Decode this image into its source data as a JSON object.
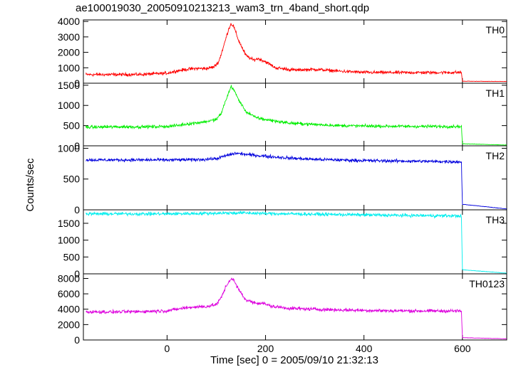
{
  "chart_data": {
    "type": "line",
    "title": "ae100019030_20050910213213_wam3_trn_4band_short.qdp",
    "xlabel": "Time [sec] 0 = 2005/09/10 21:32:13",
    "ylabel": "Counts/sec",
    "xlim": [
      -170,
      690
    ],
    "x_ticks": [
      0,
      200,
      400,
      600
    ],
    "grid": false,
    "panels": [
      {
        "name": "TH0",
        "color": "#ff0000",
        "ylim": [
          0,
          4100
        ],
        "y_ticks": [
          0,
          1000,
          2000,
          3000,
          4000
        ],
        "points": [
          [
            -165,
            560
          ],
          [
            -100,
            560
          ],
          [
            -50,
            570
          ],
          [
            0,
            650
          ],
          [
            20,
            800
          ],
          [
            40,
            900
          ],
          [
            60,
            960
          ],
          [
            80,
            950
          ],
          [
            95,
            1050
          ],
          [
            105,
            1400
          ],
          [
            115,
            2400
          ],
          [
            125,
            3500
          ],
          [
            130,
            3850
          ],
          [
            135,
            3700
          ],
          [
            145,
            2800
          ],
          [
            160,
            1800
          ],
          [
            175,
            1500
          ],
          [
            185,
            1600
          ],
          [
            200,
            1400
          ],
          [
            220,
            1000
          ],
          [
            260,
            850
          ],
          [
            300,
            900
          ],
          [
            350,
            780
          ],
          [
            400,
            700
          ],
          [
            450,
            690
          ],
          [
            500,
            690
          ],
          [
            550,
            690
          ],
          [
            595,
            700
          ],
          [
            598,
            700
          ],
          [
            600,
            130
          ],
          [
            690,
            110
          ]
        ]
      },
      {
        "name": "TH1",
        "color": "#00ee00",
        "ylim": [
          0,
          1550
        ],
        "y_ticks": [
          0,
          500,
          1000,
          1500
        ],
        "points": [
          [
            -165,
            460
          ],
          [
            -100,
            470
          ],
          [
            -50,
            470
          ],
          [
            0,
            480
          ],
          [
            20,
            500
          ],
          [
            40,
            540
          ],
          [
            60,
            570
          ],
          [
            80,
            600
          ],
          [
            100,
            650
          ],
          [
            110,
            800
          ],
          [
            120,
            1150
          ],
          [
            130,
            1470
          ],
          [
            135,
            1400
          ],
          [
            145,
            1150
          ],
          [
            160,
            850
          ],
          [
            180,
            700
          ],
          [
            200,
            650
          ],
          [
            250,
            560
          ],
          [
            300,
            530
          ],
          [
            350,
            500
          ],
          [
            400,
            490
          ],
          [
            450,
            485
          ],
          [
            500,
            480
          ],
          [
            550,
            480
          ],
          [
            595,
            480
          ],
          [
            598,
            475
          ],
          [
            600,
            50
          ],
          [
            690,
            20
          ]
        ]
      },
      {
        "name": "TH2",
        "color": "#0000dd",
        "ylim": [
          0,
          1040
        ],
        "y_ticks": [
          0,
          500,
          1000
        ],
        "points": [
          [
            -165,
            810
          ],
          [
            -100,
            810
          ],
          [
            -50,
            810
          ],
          [
            0,
            810
          ],
          [
            60,
            815
          ],
          [
            100,
            830
          ],
          [
            120,
            880
          ],
          [
            140,
            920
          ],
          [
            160,
            900
          ],
          [
            200,
            870
          ],
          [
            250,
            840
          ],
          [
            300,
            820
          ],
          [
            400,
            800
          ],
          [
            500,
            790
          ],
          [
            595,
            780
          ],
          [
            598,
            770
          ],
          [
            600,
            90
          ],
          [
            690,
            15
          ]
        ]
      },
      {
        "name": "TH3",
        "color": "#00eeee",
        "ylim": [
          0,
          1900
        ],
        "y_ticks": [
          0,
          500,
          1000,
          1500
        ],
        "points": [
          [
            -165,
            1780
          ],
          [
            -100,
            1780
          ],
          [
            0,
            1780
          ],
          [
            100,
            1800
          ],
          [
            150,
            1810
          ],
          [
            200,
            1790
          ],
          [
            300,
            1770
          ],
          [
            400,
            1750
          ],
          [
            500,
            1730
          ],
          [
            595,
            1720
          ],
          [
            598,
            1700
          ],
          [
            600,
            120
          ],
          [
            690,
            20
          ]
        ]
      },
      {
        "name": "TH0123",
        "color": "#dd00dd",
        "ylim": [
          0,
          8600
        ],
        "y_ticks": [
          0,
          2000,
          4000,
          6000,
          8000
        ],
        "points": [
          [
            -165,
            3650
          ],
          [
            -100,
            3650
          ],
          [
            -50,
            3700
          ],
          [
            0,
            3800
          ],
          [
            20,
            4000
          ],
          [
            40,
            4200
          ],
          [
            60,
            4300
          ],
          [
            80,
            4350
          ],
          [
            100,
            4600
          ],
          [
            110,
            5500
          ],
          [
            120,
            7000
          ],
          [
            130,
            8000
          ],
          [
            135,
            7800
          ],
          [
            145,
            6600
          ],
          [
            160,
            5200
          ],
          [
            180,
            4800
          ],
          [
            195,
            4800
          ],
          [
            210,
            4400
          ],
          [
            250,
            4100
          ],
          [
            300,
            4000
          ],
          [
            350,
            3900
          ],
          [
            400,
            3850
          ],
          [
            450,
            3800
          ],
          [
            500,
            3780
          ],
          [
            550,
            3770
          ],
          [
            595,
            3770
          ],
          [
            598,
            3750
          ],
          [
            600,
            300
          ],
          [
            690,
            150
          ]
        ]
      }
    ]
  }
}
